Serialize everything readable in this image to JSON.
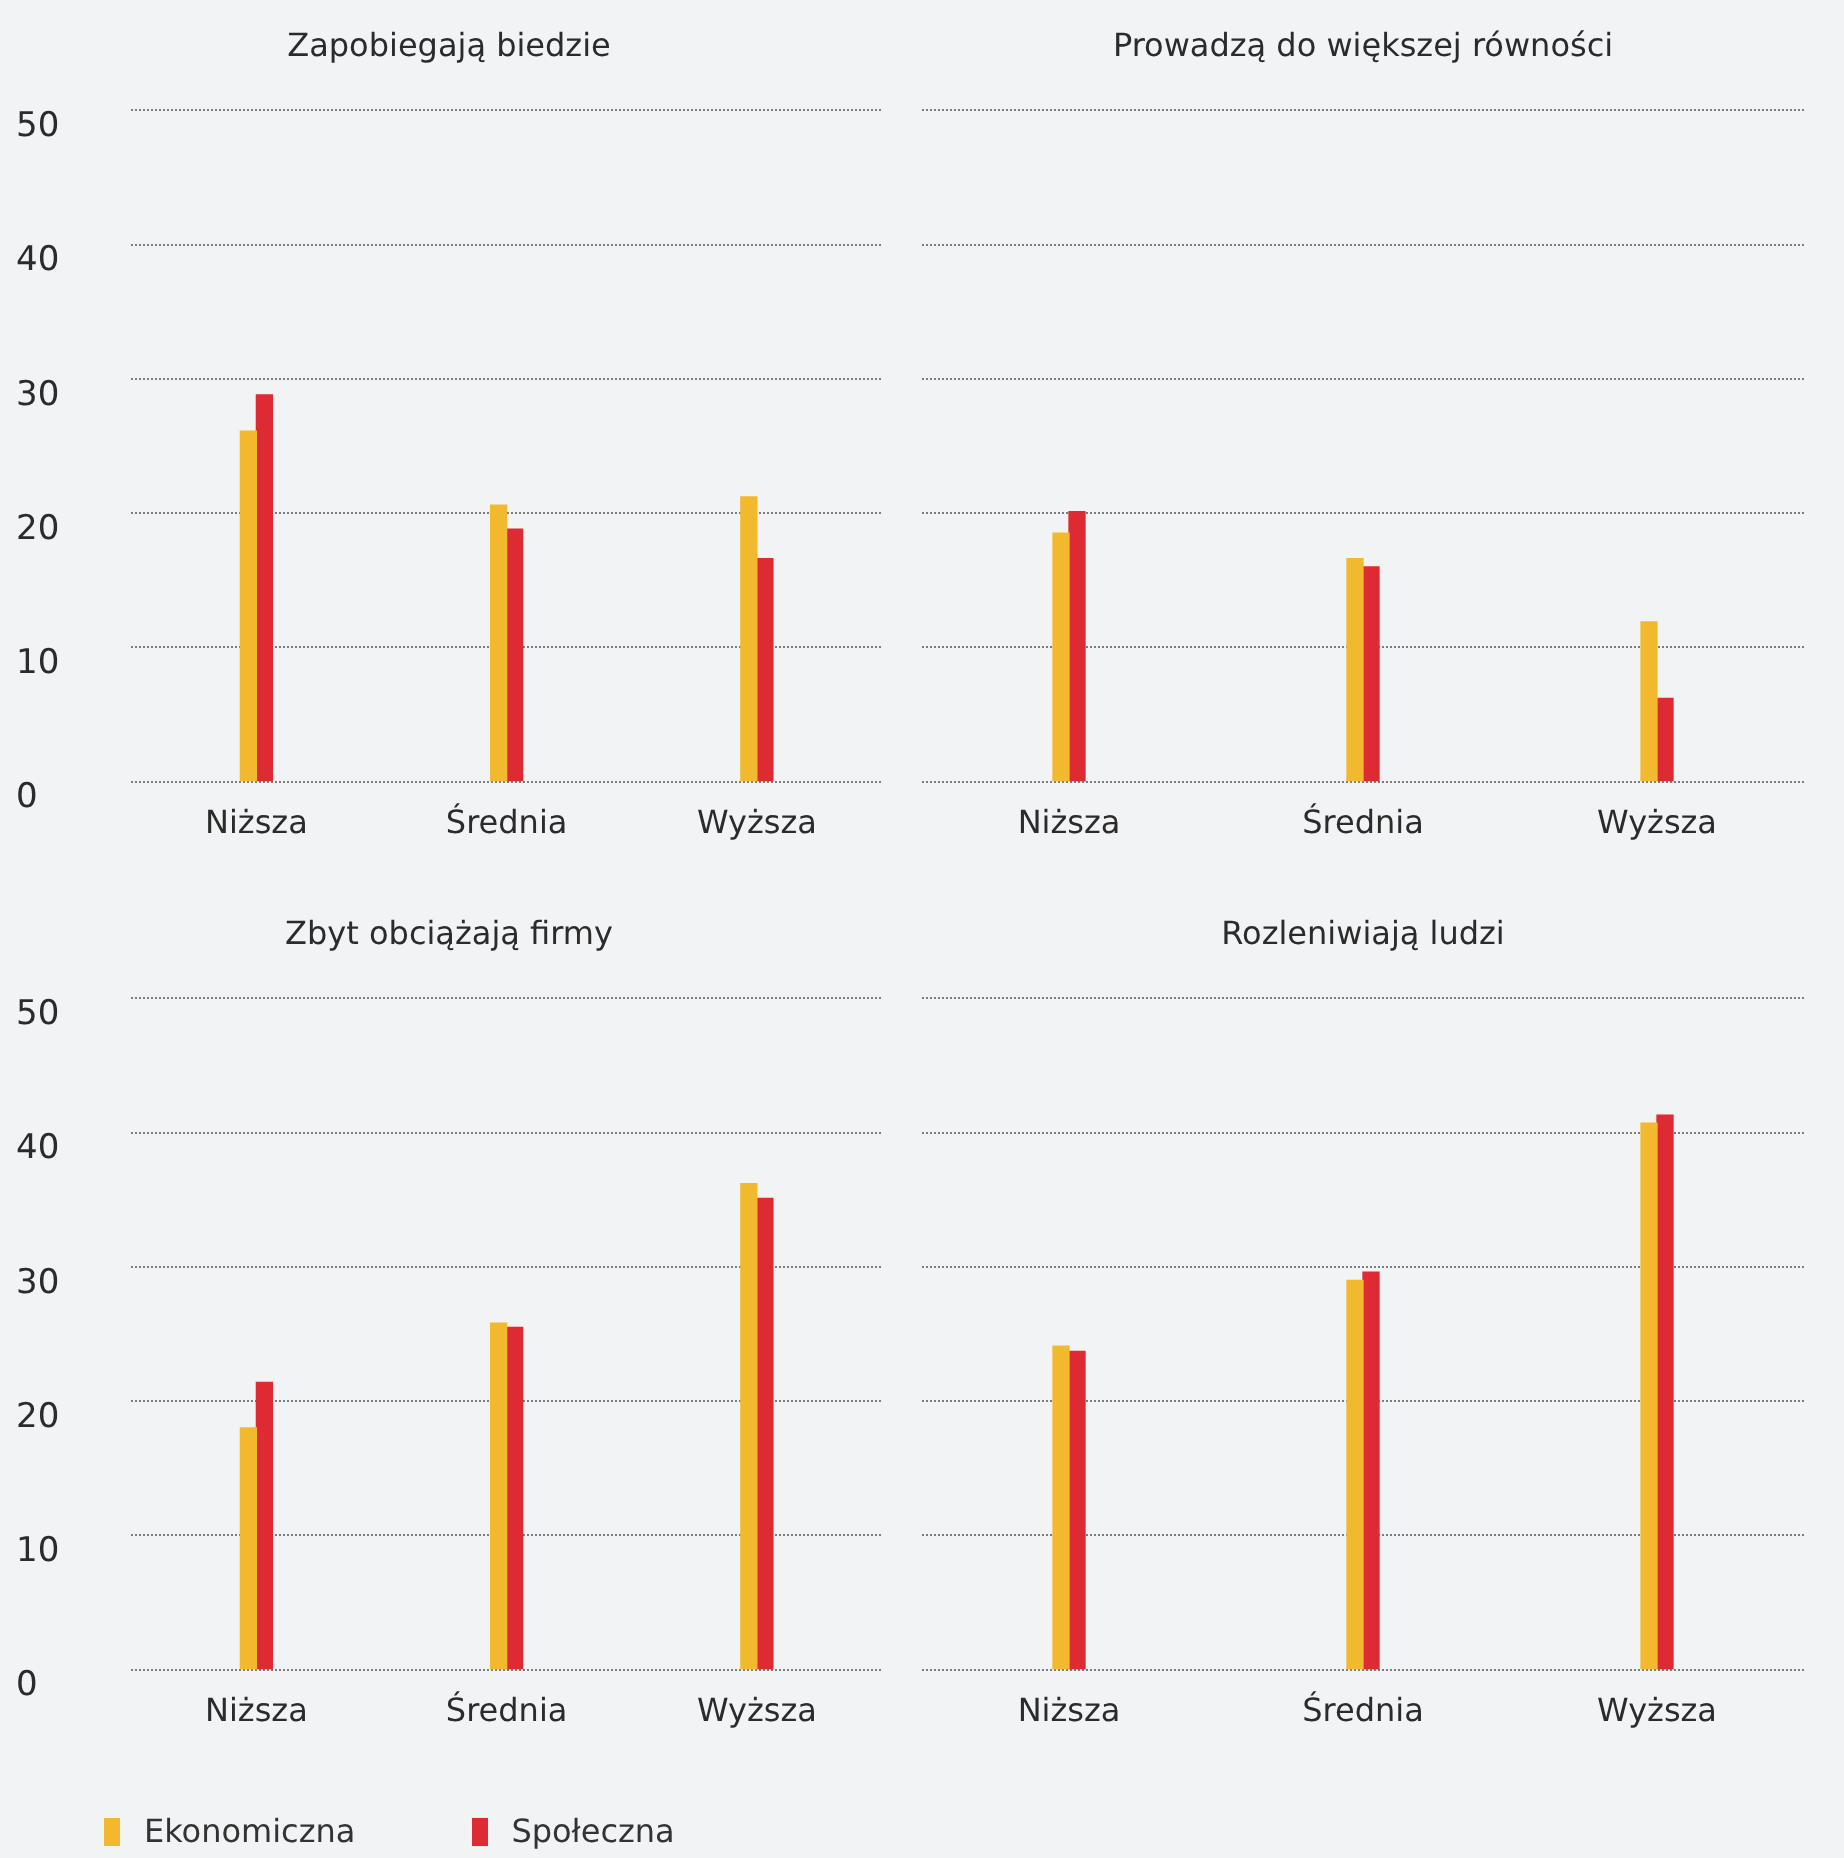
{
  "chart_data": [
    {
      "type": "bar",
      "title": "Zapobiegają biedzie",
      "categories": [
        "Niższa",
        "Średnia",
        "Wyższa"
      ],
      "ylim": [
        0,
        50
      ],
      "yticks": [
        0,
        10,
        20,
        30,
        40,
        50
      ],
      "grid": "y",
      "legend": "bottom left",
      "series": [
        {
          "name": "Ekonomiczna",
          "color": "#f2b92e",
          "values": [
            26.1,
            20.6,
            21.2
          ]
        },
        {
          "name": "Społeczna",
          "color": "#de2a33",
          "values": [
            28.8,
            18.8,
            16.6
          ]
        }
      ]
    },
    {
      "type": "bar",
      "title": "Prowadzą do większej równości",
      "categories": [
        "Niższa",
        "Średnia",
        "Wyższa"
      ],
      "ylim": [
        0,
        50
      ],
      "yticks": [
        0,
        10,
        20,
        30,
        40,
        50
      ],
      "grid": "y",
      "legend": false,
      "tick_labels": "x",
      "series": [
        {
          "color": "#f2b92e",
          "values": [
            18.5,
            16.6,
            11.9
          ]
        },
        {
          "color": "#de2a33",
          "values": [
            20.1,
            16.0,
            6.2
          ]
        }
      ]
    },
    {
      "type": "bar",
      "title": "Zbyt obciążają firmy",
      "categories": [
        "Niższa",
        "Średnia",
        "Wyższa"
      ],
      "ylim": [
        0,
        50
      ],
      "yticks": [
        0,
        10,
        20,
        30,
        40,
        50
      ],
      "grid": "y",
      "legend": false,
      "series": [
        {
          "color": "#f2b92e",
          "values": [
            18.0,
            25.8,
            36.2
          ]
        },
        {
          "color": "#de2a33",
          "values": [
            21.4,
            25.5,
            35.1
          ]
        }
      ]
    },
    {
      "type": "bar",
      "title": "Rozleniwiają ludzi",
      "categories": [
        "Niższa",
        "Średnia",
        "Wyższa"
      ],
      "ylim": [
        0,
        50
      ],
      "yticks": [
        0,
        10,
        20,
        30,
        40,
        50
      ],
      "grid": "y",
      "legend": false,
      "tick_labels": "x",
      "series": [
        {
          "color": "#f2b92e",
          "values": [
            24.1,
            29.0,
            40.7
          ]
        },
        {
          "color": "#de2a33",
          "values": [
            23.7,
            29.6,
            41.3
          ]
        }
      ]
    }
  ]
}
